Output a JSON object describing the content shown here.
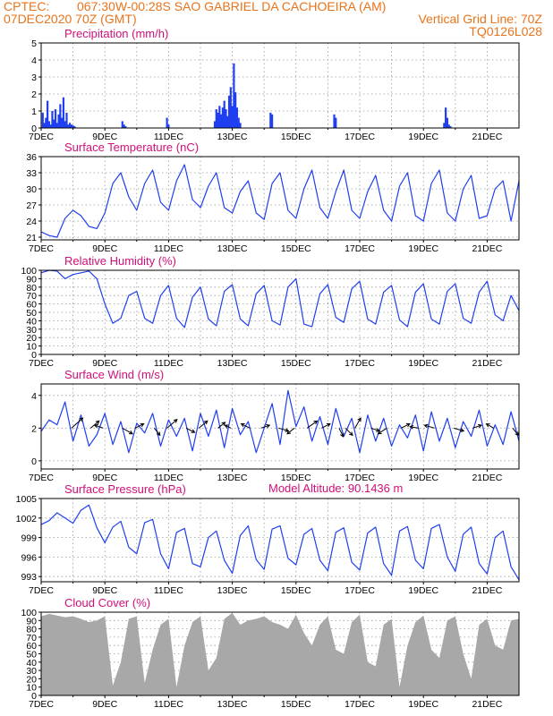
{
  "header": {
    "source": "CPTEC:",
    "location": "067:30W-00:28S  SAO GABRIEL DA CACHOEIRA (AM)",
    "date": "07DEC2020 70Z (GMT)",
    "grid_line": "Vertical Grid Line: 70Z",
    "model": "TQ0126L028",
    "model_altitude": "Model Altitude: 90.1436 m"
  },
  "colors": {
    "header": "#e8741c",
    "title": "#d0107a",
    "line": "#1f3ff0",
    "cloud": "#a8a8a8"
  },
  "chart_data": [
    {
      "type": "bar",
      "title": "Precipitation (mm/h)",
      "x_ticks": [
        "7DEC",
        "9DEC",
        "11DEC",
        "13DEC",
        "15DEC",
        "17DEC",
        "19DEC",
        "21DEC"
      ],
      "y_ticks": [
        0,
        1,
        2,
        3,
        4,
        5
      ],
      "ylim": [
        0,
        5
      ],
      "x": [
        0.05,
        0.1,
        0.15,
        0.2,
        0.25,
        0.3,
        0.35,
        0.4,
        0.45,
        0.5,
        0.55,
        0.6,
        0.65,
        0.7,
        0.75,
        0.8,
        0.85,
        0.9,
        0.95,
        1.0,
        1.05,
        2.55,
        2.6,
        2.65,
        3.95,
        4.0,
        5.45,
        5.5,
        5.55,
        5.6,
        5.65,
        5.7,
        5.75,
        5.8,
        5.85,
        5.9,
        5.95,
        6.0,
        6.05,
        6.1,
        6.15,
        6.2,
        6.25,
        7.2,
        7.25,
        9.2,
        9.25,
        12.65,
        12.7,
        12.75,
        12.8,
        12.85
      ],
      "values": [
        0.9,
        0.3,
        0.6,
        1.6,
        0.4,
        0.2,
        1.0,
        0.5,
        1.1,
        0.3,
        0.8,
        1.4,
        0.6,
        1.8,
        0.4,
        0.9,
        0.2,
        0.3,
        0.2,
        0.15,
        0.1,
        0.4,
        0.2,
        0.1,
        0.6,
        0.2,
        0.4,
        1.1,
        0.9,
        1.3,
        0.8,
        1.2,
        1.6,
        1.1,
        0.7,
        1.9,
        2.4,
        1.3,
        3.8,
        2.1,
        1.2,
        0.6,
        0.3,
        0.9,
        0.8,
        0.8,
        0.6,
        0.3,
        1.2,
        0.6,
        0.2,
        0.1
      ]
    },
    {
      "type": "line",
      "title": "Surface Temperature (nC)",
      "x_ticks": [
        "7DEC",
        "9DEC",
        "11DEC",
        "13DEC",
        "15DEC",
        "17DEC",
        "19DEC",
        "21DEC"
      ],
      "y_ticks": [
        21,
        24,
        27,
        30,
        33,
        36
      ],
      "ylim": [
        20.5,
        36
      ],
      "x": [
        0,
        0.25,
        0.5,
        0.75,
        1.0,
        1.25,
        1.5,
        1.75,
        2.0,
        2.25,
        2.5,
        2.75,
        3.0,
        3.25,
        3.5,
        3.75,
        4.0,
        4.25,
        4.5,
        4.75,
        5.0,
        5.25,
        5.5,
        5.75,
        6.0,
        6.25,
        6.5,
        6.75,
        7.0,
        7.25,
        7.5,
        7.75,
        8.0,
        8.25,
        8.5,
        8.75,
        9.0,
        9.25,
        9.5,
        9.75,
        10.0,
        10.25,
        10.5,
        10.75,
        11.0,
        11.25,
        11.5,
        11.75,
        12.0,
        12.25,
        12.5,
        12.75,
        13.0,
        13.25,
        13.5,
        13.75,
        14.0,
        14.25,
        14.5,
        14.75,
        15.0
      ],
      "values": [
        22.0,
        21.3,
        21.0,
        24.5,
        26.0,
        25.0,
        23.0,
        22.6,
        25.5,
        31.0,
        33.0,
        28.5,
        26.0,
        31.0,
        33.5,
        27.5,
        26.0,
        31.5,
        34.5,
        28.0,
        26.5,
        30.5,
        33.0,
        26.5,
        25.5,
        29.5,
        31.5,
        25.5,
        24.3,
        31.0,
        33.0,
        26.0,
        24.5,
        30.0,
        33.5,
        26.5,
        24.5,
        29.5,
        33.5,
        26.0,
        24.5,
        29.5,
        32.5,
        26.0,
        24.0,
        30.5,
        33.0,
        25.0,
        24.0,
        31.0,
        33.5,
        25.5,
        24.0,
        30.0,
        32.5,
        24.5,
        25.0,
        30.0,
        31.5,
        24.0,
        31.5
      ]
    },
    {
      "type": "line",
      "title": "Relative Humidity (%)",
      "x_ticks": [
        "7DEC",
        "9DEC",
        "11DEC",
        "13DEC",
        "15DEC",
        "17DEC",
        "19DEC",
        "21DEC"
      ],
      "y_ticks": [
        0,
        10,
        20,
        30,
        40,
        50,
        60,
        70,
        80,
        90,
        100
      ],
      "ylim": [
        0,
        100
      ],
      "x": [
        0,
        0.25,
        0.5,
        0.75,
        1.0,
        1.25,
        1.5,
        1.75,
        2.0,
        2.25,
        2.5,
        2.75,
        3.0,
        3.25,
        3.5,
        3.75,
        4.0,
        4.25,
        4.5,
        4.75,
        5.0,
        5.25,
        5.5,
        5.75,
        6.0,
        6.25,
        6.5,
        6.75,
        7.0,
        7.25,
        7.5,
        7.75,
        8.0,
        8.25,
        8.5,
        8.75,
        9.0,
        9.25,
        9.5,
        9.75,
        10.0,
        10.25,
        10.5,
        10.75,
        11.0,
        11.25,
        11.5,
        11.75,
        12.0,
        12.25,
        12.5,
        12.75,
        13.0,
        13.25,
        13.5,
        13.75,
        14.0,
        14.25,
        14.5,
        14.75,
        15.0
      ],
      "values": [
        97,
        100,
        99,
        90,
        95,
        97,
        99,
        90,
        60,
        37,
        43,
        70,
        75,
        43,
        37,
        70,
        82,
        43,
        32,
        68,
        80,
        42,
        34,
        75,
        83,
        42,
        34,
        72,
        82,
        40,
        35,
        80,
        90,
        36,
        33,
        72,
        83,
        44,
        38,
        78,
        87,
        42,
        36,
        74,
        82,
        41,
        33,
        74,
        84,
        42,
        36,
        75,
        84,
        43,
        37,
        74,
        87,
        47,
        40,
        70,
        52
      ]
    },
    {
      "type": "line",
      "title": "Surface Wind (m/s)",
      "x_ticks": [
        "7DEC",
        "9DEC",
        "11DEC",
        "13DEC",
        "15DEC",
        "17DEC",
        "19DEC",
        "21DEC"
      ],
      "y_ticks": [
        0,
        2,
        4
      ],
      "ylim": [
        -0.5,
        4.7
      ],
      "x": [
        0,
        0.25,
        0.5,
        0.75,
        1.0,
        1.25,
        1.5,
        1.75,
        2.0,
        2.25,
        2.5,
        2.75,
        3.0,
        3.25,
        3.5,
        3.75,
        4.0,
        4.25,
        4.5,
        4.75,
        5.0,
        5.25,
        5.5,
        5.75,
        6.0,
        6.25,
        6.5,
        6.75,
        7.0,
        7.25,
        7.5,
        7.75,
        8.0,
        8.25,
        8.5,
        8.75,
        9.0,
        9.25,
        9.5,
        9.75,
        10.0,
        10.25,
        10.5,
        10.75,
        11.0,
        11.25,
        11.5,
        11.75,
        12.0,
        12.25,
        12.5,
        12.75,
        13.0,
        13.25,
        13.5,
        13.75,
        14.0,
        14.25,
        14.5,
        14.75,
        15.0
      ],
      "values": [
        1.8,
        2.5,
        2.2,
        3.6,
        1.2,
        2.8,
        0.9,
        1.6,
        2.9,
        1.0,
        2.4,
        0.5,
        2.3,
        1.7,
        2.9,
        0.9,
        2.5,
        1.5,
        2.6,
        0.6,
        2.9,
        1.5,
        3.1,
        0.8,
        3.2,
        1.6,
        2.4,
        0.5,
        2.0,
        3.5,
        1.0,
        4.3,
        2.1,
        3.3,
        1.2,
        2.7,
        1.0,
        3.2,
        1.5,
        2.6,
        0.5,
        2.8,
        1.2,
        2.6,
        0.9,
        2.2,
        1.4,
        2.8,
        0.6,
        3.0,
        1.2,
        2.6,
        0.8,
        2.4,
        1.5,
        3.1,
        0.9,
        2.2,
        1.0,
        3.0,
        1.2
      ],
      "arrows": [
        {
          "x": 0.95,
          "u": 0.8,
          "v": 0.7
        },
        {
          "x": 1.55,
          "u": 0.6,
          "v": 0.5
        },
        {
          "x": 1.95,
          "u": -0.6,
          "v": 0.2
        },
        {
          "x": 2.55,
          "u": 0.7,
          "v": -0.4
        },
        {
          "x": 2.95,
          "u": 0.6,
          "v": 0.3
        },
        {
          "x": 3.55,
          "u": 0.4,
          "v": -0.5
        },
        {
          "x": 3.95,
          "u": 0.7,
          "v": 0.6
        },
        {
          "x": 4.55,
          "u": 0.6,
          "v": -0.3
        },
        {
          "x": 4.95,
          "u": 0.6,
          "v": 0.5
        },
        {
          "x": 5.55,
          "u": 0.5,
          "v": 0.4
        },
        {
          "x": 5.95,
          "u": -0.4,
          "v": 0.2
        },
        {
          "x": 6.55,
          "u": -0.6,
          "v": 0.3
        },
        {
          "x": 6.9,
          "u": 0.6,
          "v": 0.2
        },
        {
          "x": 7.45,
          "u": 0.7,
          "v": -0.2
        },
        {
          "x": 7.95,
          "u": -0.5,
          "v": -0.4
        },
        {
          "x": 8.35,
          "u": 0.7,
          "v": 0.5
        },
        {
          "x": 8.8,
          "u": 0.6,
          "v": 0.3
        },
        {
          "x": 9.35,
          "u": 0.3,
          "v": -0.6
        },
        {
          "x": 9.55,
          "u": 0.5,
          "v": -0.5
        },
        {
          "x": 9.85,
          "u": 0.4,
          "v": 0.7
        },
        {
          "x": 10.35,
          "u": 0.6,
          "v": -0.2
        },
        {
          "x": 10.85,
          "u": -0.6,
          "v": -0.4
        },
        {
          "x": 11.3,
          "u": 0.6,
          "v": 0.3
        },
        {
          "x": 11.85,
          "u": -0.6,
          "v": 0.1
        },
        {
          "x": 12.35,
          "u": -0.7,
          "v": 0.2
        },
        {
          "x": 12.95,
          "u": 0.7,
          "v": -0.2
        },
        {
          "x": 13.55,
          "u": 0.6,
          "v": 0.2
        },
        {
          "x": 14.2,
          "u": -0.5,
          "v": 0.3
        },
        {
          "x": 14.8,
          "u": 0.4,
          "v": -0.5
        }
      ]
    },
    {
      "type": "line",
      "title": "Surface Pressure (hPa)",
      "x_ticks": [
        "7DEC",
        "9DEC",
        "11DEC",
        "13DEC",
        "15DEC",
        "17DEC",
        "19DEC",
        "21DEC"
      ],
      "y_ticks": [
        993,
        996,
        999,
        1002,
        1005
      ],
      "ylim": [
        992.2,
        1005
      ],
      "x": [
        0,
        0.25,
        0.5,
        0.75,
        1.0,
        1.25,
        1.5,
        1.75,
        2.0,
        2.25,
        2.5,
        2.75,
        3.0,
        3.25,
        3.5,
        3.75,
        4.0,
        4.25,
        4.5,
        4.75,
        5.0,
        5.25,
        5.5,
        5.75,
        6.0,
        6.25,
        6.5,
        6.75,
        7.0,
        7.25,
        7.5,
        7.75,
        8.0,
        8.25,
        8.5,
        8.75,
        9.0,
        9.25,
        9.5,
        9.75,
        10.0,
        10.25,
        10.5,
        10.75,
        11.0,
        11.25,
        11.5,
        11.75,
        12.0,
        12.25,
        12.5,
        12.75,
        13.0,
        13.25,
        13.5,
        13.75,
        14.0,
        14.25,
        14.5,
        14.75,
        15.0
      ],
      "values": [
        1001.0,
        1001.6,
        1002.8,
        1002.0,
        1001.2,
        1003.2,
        1004.0,
        1000.5,
        998.2,
        1000.6,
        1001.5,
        997.5,
        996.5,
        1001.3,
        1001.8,
        996.5,
        994.2,
        999.8,
        1000.4,
        995.0,
        994.5,
        999.0,
        1000.0,
        995.5,
        993.5,
        999.3,
        1000.8,
        995.6,
        994.1,
        1000.3,
        1000.8,
        995.8,
        994.8,
        999.5,
        1000.4,
        995.5,
        993.9,
        999.8,
        1000.5,
        995.2,
        994.0,
        999.7,
        1000.6,
        995.0,
        993.2,
        1000.0,
        1000.7,
        995.5,
        994.2,
        1000.4,
        1001.0,
        996.0,
        993.8,
        999.5,
        1000.6,
        995.0,
        993.4,
        999.0,
        1000.0,
        994.5,
        992.5
      ]
    },
    {
      "type": "area",
      "title": "Cloud Cover (%)",
      "x_ticks": [
        "7DEC",
        "9DEC",
        "11DEC",
        "13DEC",
        "15DEC",
        "17DEC",
        "19DEC",
        "21DEC"
      ],
      "y_ticks": [
        0,
        10,
        20,
        30,
        40,
        50,
        60,
        70,
        80,
        90,
        100
      ],
      "ylim": [
        0,
        100
      ],
      "x": [
        0,
        0.25,
        0.5,
        0.75,
        1.0,
        1.25,
        1.5,
        1.75,
        2.0,
        2.25,
        2.5,
        2.75,
        3.0,
        3.25,
        3.5,
        3.75,
        4.0,
        4.25,
        4.5,
        4.75,
        5.0,
        5.25,
        5.5,
        5.75,
        6.0,
        6.25,
        6.5,
        6.75,
        7.0,
        7.25,
        7.5,
        7.75,
        8.0,
        8.25,
        8.5,
        8.75,
        9.0,
        9.25,
        9.5,
        9.75,
        10.0,
        10.25,
        10.5,
        10.75,
        11.0,
        11.25,
        11.5,
        11.75,
        12.0,
        12.25,
        12.5,
        12.75,
        13.0,
        13.25,
        13.5,
        13.75,
        14.0,
        14.25,
        14.5,
        14.75,
        15.0
      ],
      "values": [
        95,
        98,
        96,
        94,
        95,
        92,
        88,
        90,
        95,
        12,
        40,
        92,
        95,
        15,
        55,
        85,
        92,
        10,
        60,
        88,
        95,
        30,
        45,
        92,
        99,
        85,
        90,
        92,
        95,
        88,
        85,
        80,
        97,
        75,
        60,
        85,
        95,
        55,
        50,
        88,
        97,
        40,
        35,
        85,
        92,
        10,
        60,
        88,
        96,
        55,
        45,
        90,
        95,
        50,
        20,
        85,
        92,
        60,
        55,
        90,
        92
      ]
    }
  ]
}
